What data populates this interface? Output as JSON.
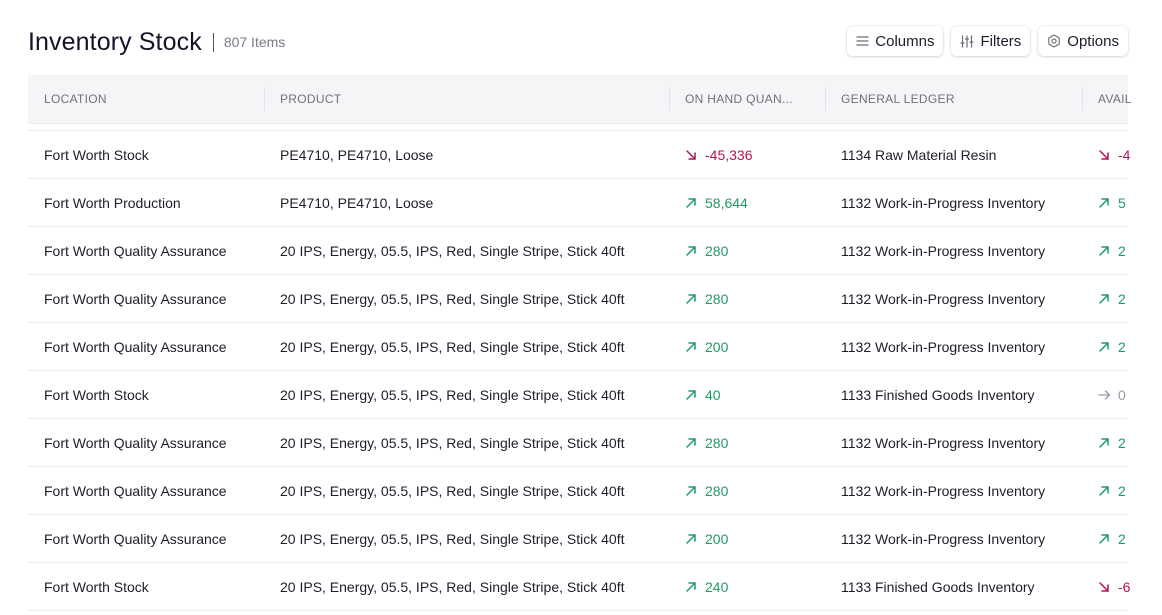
{
  "header": {
    "title": "Inventory Stock",
    "count": "807 Items"
  },
  "toolbar": {
    "columns_label": "Columns",
    "filters_label": "Filters",
    "options_label": "Options"
  },
  "table": {
    "columns": [
      "LOCATION",
      "PRODUCT",
      "ON HAND QUAN...",
      "GENERAL LEDGER",
      "AVAIL"
    ],
    "rows": [
      {
        "location": "Fort Worth Stock",
        "product": "PE4710, PE4710, Loose",
        "qty": "-45,336",
        "ledger": "1134 Raw Material Resin",
        "avail": "-4",
        "qty_trend": "down",
        "avail_trend": "down"
      },
      {
        "location": "Fort Worth Production",
        "product": "PE4710, PE4710, Loose",
        "qty": "58,644",
        "ledger": "1132 Work-in-Progress Inventory",
        "avail": "5",
        "qty_trend": "up",
        "avail_trend": "up"
      },
      {
        "location": "Fort Worth Quality Assurance",
        "product": "20 IPS, Energy, 05.5, IPS, Red, Single Stripe, Stick 40ft",
        "qty": "280",
        "ledger": "1132 Work-in-Progress Inventory",
        "avail": "2",
        "qty_trend": "up",
        "avail_trend": "up"
      },
      {
        "location": "Fort Worth Quality Assurance",
        "product": "20 IPS, Energy, 05.5, IPS, Red, Single Stripe, Stick 40ft",
        "qty": "280",
        "ledger": "1132 Work-in-Progress Inventory",
        "avail": "2",
        "qty_trend": "up",
        "avail_trend": "up"
      },
      {
        "location": "Fort Worth Quality Assurance",
        "product": "20 IPS, Energy, 05.5, IPS, Red, Single Stripe, Stick 40ft",
        "qty": "200",
        "ledger": "1132 Work-in-Progress Inventory",
        "avail": "2",
        "qty_trend": "up",
        "avail_trend": "up"
      },
      {
        "location": "Fort Worth Stock",
        "product": "20 IPS, Energy, 05.5, IPS, Red, Single Stripe, Stick 40ft",
        "qty": "40",
        "ledger": "1133 Finished Goods Inventory",
        "avail": "0",
        "qty_trend": "up",
        "avail_trend": "flat"
      },
      {
        "location": "Fort Worth Quality Assurance",
        "product": "20 IPS, Energy, 05.5, IPS, Red, Single Stripe, Stick 40ft",
        "qty": "280",
        "ledger": "1132 Work-in-Progress Inventory",
        "avail": "2",
        "qty_trend": "up",
        "avail_trend": "up"
      },
      {
        "location": "Fort Worth Quality Assurance",
        "product": "20 IPS, Energy, 05.5, IPS, Red, Single Stripe, Stick 40ft",
        "qty": "280",
        "ledger": "1132 Work-in-Progress Inventory",
        "avail": "2",
        "qty_trend": "up",
        "avail_trend": "up"
      },
      {
        "location": "Fort Worth Quality Assurance",
        "product": "20 IPS, Energy, 05.5, IPS, Red, Single Stripe, Stick 40ft",
        "qty": "200",
        "ledger": "1132 Work-in-Progress Inventory",
        "avail": "2",
        "qty_trend": "up",
        "avail_trend": "up"
      },
      {
        "location": "Fort Worth Stock",
        "product": "20 IPS, Energy, 05.5, IPS, Red, Single Stripe, Stick 40ft",
        "qty": "240",
        "ledger": "1133 Finished Goods Inventory",
        "avail": "-6",
        "qty_trend": "up",
        "avail_trend": "down"
      }
    ]
  },
  "icons": {
    "columns": "list-lines-icon",
    "filters": "sliders-icon",
    "options": "hexagon-gear-icon",
    "up": "arrow-up-right-icon",
    "down": "arrow-down-right-icon",
    "flat": "arrow-right-icon"
  },
  "colors": {
    "up": "#1f9a68",
    "down": "#b0145a",
    "flat": "#9a9aa6",
    "header_bg": "#f5f5f7"
  }
}
